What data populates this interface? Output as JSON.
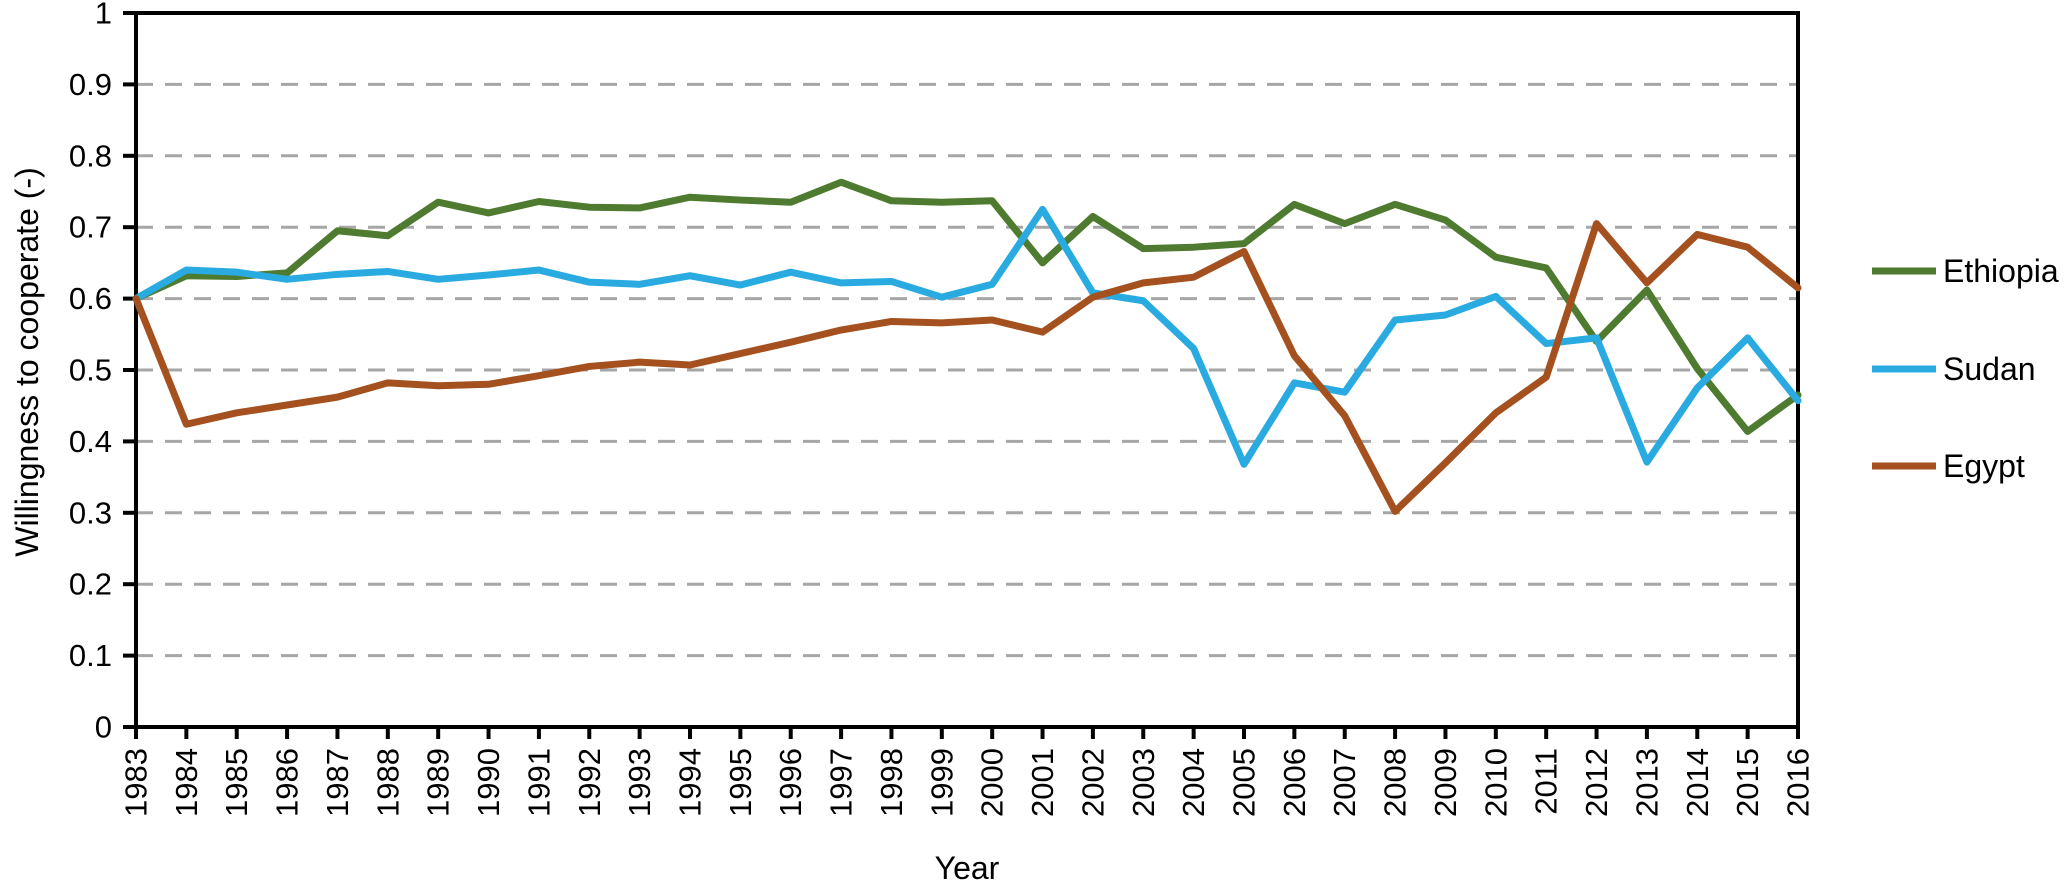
{
  "chart_data": {
    "type": "line",
    "title": "",
    "xlabel": "Year",
    "ylabel": "Willingness to cooperate (-)",
    "ylim": [
      0,
      1
    ],
    "yticks": [
      0,
      0.1,
      0.2,
      0.3,
      0.4,
      0.5,
      0.6,
      0.7,
      0.8,
      0.9,
      1
    ],
    "ytick_labels": [
      "0",
      "0.1",
      "0.2",
      "0.3",
      "0.4",
      "0.5",
      "0.6",
      "0.7",
      "0.8",
      "0.9",
      "1"
    ],
    "grid": "horizontal-dashed",
    "gridline_color": "#a6a6a6",
    "axis_color": "#000000",
    "legend_position": "right",
    "x": [
      1983,
      1984,
      1985,
      1986,
      1987,
      1988,
      1989,
      1990,
      1991,
      1992,
      1993,
      1994,
      1995,
      1996,
      1997,
      1998,
      1999,
      2000,
      2001,
      2002,
      2003,
      2004,
      2005,
      2006,
      2007,
      2008,
      2009,
      2010,
      2011,
      2012,
      2013,
      2014,
      2015,
      2016
    ],
    "series": [
      {
        "name": "Ethiopia",
        "color": "#4e7b2f",
        "values": [
          0.6,
          0.632,
          0.631,
          0.636,
          0.695,
          0.688,
          0.735,
          0.72,
          0.736,
          0.728,
          0.727,
          0.742,
          0.738,
          0.735,
          0.763,
          0.737,
          0.735,
          0.737,
          0.65,
          0.715,
          0.67,
          0.672,
          0.677,
          0.732,
          0.705,
          0.732,
          0.71,
          0.658,
          0.643,
          0.54,
          0.612,
          0.502,
          0.414,
          0.465
        ]
      },
      {
        "name": "Sudan",
        "color": "#29abe2",
        "values": [
          0.6,
          0.64,
          0.637,
          0.627,
          0.634,
          0.638,
          0.627,
          0.633,
          0.64,
          0.623,
          0.62,
          0.632,
          0.619,
          0.637,
          0.622,
          0.624,
          0.602,
          0.62,
          0.725,
          0.608,
          0.597,
          0.53,
          0.368,
          0.482,
          0.469,
          0.57,
          0.577,
          0.603,
          0.537,
          0.545,
          0.371,
          0.475,
          0.545,
          0.457
        ]
      },
      {
        "name": "Egypt",
        "color": "#a5511f",
        "values": [
          0.6,
          0.424,
          0.44,
          0.451,
          0.462,
          0.482,
          0.478,
          0.48,
          0.492,
          0.505,
          0.511,
          0.507,
          0.523,
          0.539,
          0.556,
          0.568,
          0.566,
          0.57,
          0.553,
          0.602,
          0.622,
          0.63,
          0.666,
          0.52,
          0.436,
          0.302,
          0.37,
          0.44,
          0.49,
          0.705,
          0.622,
          0.69,
          0.672,
          0.615
        ]
      }
    ]
  }
}
